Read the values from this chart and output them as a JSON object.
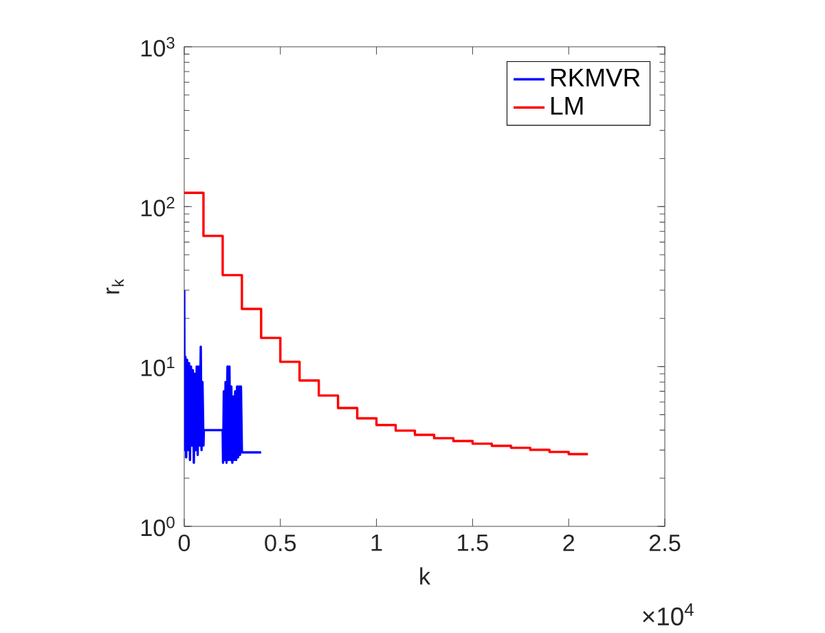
{
  "chart_data": {
    "type": "line",
    "xlabel": "k",
    "ylabel": "r$_{k}$",
    "log": "y",
    "legend": "top right",
    "xlim": [
      0,
      2.5
    ],
    "ylim": [
      1,
      1000
    ],
    "xticks": [
      0,
      0.5,
      1,
      1.5,
      2,
      2.5
    ],
    "yticks": [
      {
        "value": 1,
        "label": "10$^{0}$"
      },
      {
        "value": 10,
        "label": "10$^{1}$"
      },
      {
        "value": 100,
        "label": "10$^{2}$"
      },
      {
        "value": 1000,
        "label": "10$^{3}$"
      }
    ],
    "annotations": [
      "×10$^{4}$"
    ],
    "series": [
      {
        "name": "RKMVR",
        "color": "#0000ff",
        "x": [
          0,
          0.002,
          0.006,
          0.01,
          0.015,
          0.02,
          0.025,
          0.03,
          0.035,
          0.04,
          0.045,
          0.05,
          0.055,
          0.06,
          0.065,
          0.07,
          0.075,
          0.08,
          0.086,
          0.09,
          0.095,
          0.1,
          0.102,
          0.2,
          0.202,
          0.206,
          0.21,
          0.215,
          0.22,
          0.225,
          0.23,
          0.235,
          0.24,
          0.245,
          0.25,
          0.255,
          0.26,
          0.265,
          0.27,
          0.275,
          0.28,
          0.285,
          0.29,
          0.295,
          0.3,
          0.4
        ],
        "values": [
          30,
          3.0,
          11.5,
          2.7,
          11,
          3.0,
          10.5,
          2.6,
          10,
          3.2,
          9.5,
          2.5,
          9,
          3.0,
          10,
          2.8,
          10,
          3.2,
          13.3,
          3.0,
          8,
          3.2,
          4.0,
          4.0,
          2.5,
          7,
          2.6,
          8,
          2.5,
          10,
          2.6,
          10,
          2.6,
          7.5,
          2.5,
          6.5,
          2.6,
          7,
          2.6,
          7.5,
          2.7,
          7.5,
          2.8,
          7.5,
          2.9,
          2.9
        ]
      },
      {
        "name": "LM",
        "color": "#ff0000",
        "type": "step",
        "x": [
          0,
          0.1,
          0.2,
          0.3,
          0.4,
          0.5,
          0.6,
          0.7,
          0.8,
          0.9,
          1.0,
          1.1,
          1.2,
          1.3,
          1.4,
          1.5,
          1.6,
          1.7,
          1.8,
          1.9,
          2.0,
          2.1
        ],
        "values": [
          122,
          65.6,
          37.3,
          22.9,
          15.1,
          10.7,
          8.18,
          6.58,
          5.5,
          4.74,
          4.3,
          3.97,
          3.74,
          3.56,
          3.42,
          3.29,
          3.19,
          3.1,
          3.01,
          2.92,
          2.83,
          2.83
        ]
      }
    ]
  }
}
